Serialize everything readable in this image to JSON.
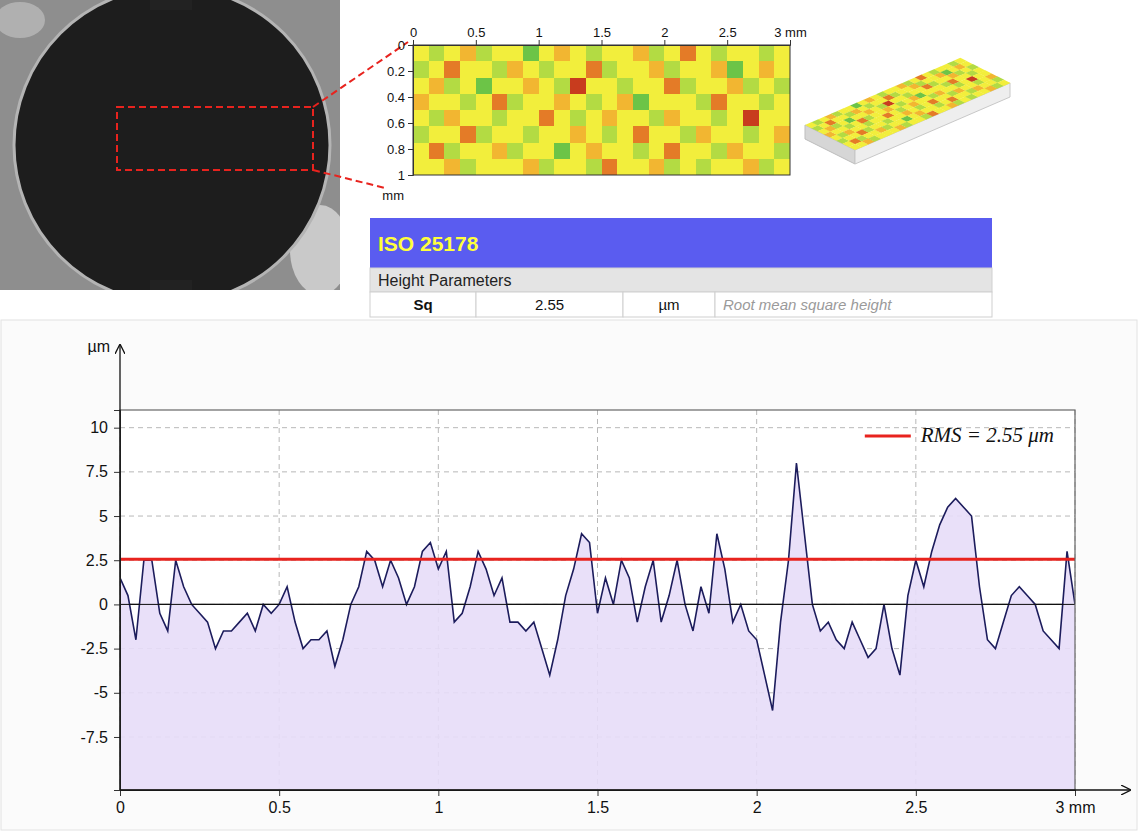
{
  "chart_data": [
    {
      "type": "heatmap",
      "xlim": [
        0,
        3
      ],
      "ylim": [
        0,
        1
      ],
      "xticks": [
        0,
        0.5,
        1,
        1.5,
        2,
        2.5,
        {
          "value": 3,
          "label": "3 mm"
        }
      ],
      "yticks": [
        0,
        0.2,
        0.4,
        0.6,
        0.8,
        1
      ],
      "ylabel": "mm",
      "zlim": [
        -3,
        3
      ],
      "z": [
        [
          0,
          -1,
          0,
          1,
          -1,
          0,
          0,
          -2,
          0,
          1,
          0,
          -1,
          0,
          0,
          1,
          -1,
          0,
          2,
          0,
          -1,
          0,
          0,
          -1,
          0
        ],
        [
          -1,
          0,
          2,
          0,
          0,
          -1,
          1,
          0,
          -1,
          0,
          0,
          2,
          -1,
          0,
          0,
          1,
          -1,
          0,
          0,
          1,
          -2,
          0,
          1,
          0
        ],
        [
          0,
          1,
          -1,
          0,
          -2,
          0,
          0,
          1,
          0,
          -1,
          3,
          0,
          0,
          -1,
          0,
          0,
          2,
          -1,
          0,
          0,
          1,
          -1,
          0,
          -1
        ],
        [
          1,
          0,
          0,
          -1,
          0,
          2,
          -1,
          0,
          0,
          1,
          0,
          -1,
          0,
          1,
          -2,
          0,
          0,
          0,
          -1,
          2,
          0,
          0,
          -1,
          0
        ],
        [
          0,
          -1,
          1,
          0,
          0,
          -1,
          0,
          0,
          2,
          0,
          -1,
          0,
          1,
          0,
          0,
          -1,
          1,
          0,
          0,
          -1,
          0,
          3,
          0,
          0
        ],
        [
          -1,
          0,
          0,
          2,
          -1,
          0,
          0,
          -1,
          0,
          0,
          1,
          0,
          -1,
          0,
          2,
          0,
          0,
          -1,
          1,
          0,
          0,
          -1,
          0,
          1
        ],
        [
          0,
          2,
          -1,
          0,
          0,
          1,
          -1,
          0,
          0,
          -2,
          0,
          1,
          0,
          0,
          -1,
          0,
          2,
          0,
          0,
          -1,
          1,
          0,
          0,
          -1
        ],
        [
          0,
          0,
          1,
          -1,
          0,
          0,
          0,
          1,
          -1,
          0,
          0,
          -1,
          2,
          0,
          0,
          1,
          -1,
          0,
          -1,
          0,
          0,
          1,
          -1,
          0
        ]
      ]
    },
    {
      "type": "line",
      "ylabel": "µm",
      "xlim": [
        0,
        3
      ],
      "ylim": [
        -10.5,
        11
      ],
      "xticks": [
        0,
        0.5,
        1,
        1.5,
        2,
        2.5,
        {
          "value": 3,
          "label": "3 mm"
        }
      ],
      "yticks": [
        -7.5,
        -5,
        -2.5,
        0,
        2.5,
        5,
        7.5,
        10
      ],
      "grid": true,
      "legend": "upper right",
      "x": [
        0,
        0.025,
        0.05,
        0.075,
        0.1,
        0.125,
        0.15,
        0.175,
        0.2,
        0.225,
        0.25,
        0.275,
        0.3,
        0.325,
        0.35,
        0.375,
        0.4,
        0.425,
        0.45,
        0.475,
        0.5,
        0.525,
        0.55,
        0.575,
        0.6,
        0.625,
        0.65,
        0.675,
        0.7,
        0.725,
        0.75,
        0.775,
        0.8,
        0.825,
        0.85,
        0.875,
        0.9,
        0.925,
        0.95,
        0.975,
        1,
        1.025,
        1.05,
        1.075,
        1.1,
        1.125,
        1.15,
        1.175,
        1.2,
        1.225,
        1.25,
        1.275,
        1.3,
        1.325,
        1.35,
        1.375,
        1.4,
        1.425,
        1.45,
        1.475,
        1.5,
        1.525,
        1.55,
        1.575,
        1.6,
        1.625,
        1.65,
        1.675,
        1.7,
        1.725,
        1.75,
        1.775,
        1.8,
        1.825,
        1.85,
        1.875,
        1.9,
        1.925,
        1.95,
        1.975,
        2,
        2.025,
        2.05,
        2.075,
        2.1,
        2.125,
        2.15,
        2.175,
        2.2,
        2.225,
        2.25,
        2.275,
        2.3,
        2.325,
        2.35,
        2.375,
        2.4,
        2.425,
        2.45,
        2.475,
        2.5,
        2.525,
        2.55,
        2.575,
        2.6,
        2.625,
        2.65,
        2.675,
        2.7,
        2.725,
        2.75,
        2.775,
        2.8,
        2.825,
        2.85,
        2.875,
        2.9,
        2.925,
        2.95,
        2.975,
        3
      ],
      "series": [
        {
          "type": "area",
          "color": "#1c1c5c",
          "values": [
            1.5,
            0.5,
            -2,
            2.5,
            2.5,
            -0.5,
            -1.5,
            2.5,
            1,
            0,
            -0.5,
            -1,
            -2.5,
            -1.5,
            -1.5,
            -1,
            -0.5,
            -1.5,
            0,
            -0.5,
            0,
            1,
            -1,
            -2.5,
            -2,
            -2,
            -1.5,
            -3.5,
            -2,
            0,
            1,
            3,
            2.5,
            1,
            2.5,
            1.5,
            0,
            1,
            3,
            3.5,
            2,
            3,
            -1,
            -0.5,
            1,
            3,
            2,
            0.5,
            1.5,
            -1,
            -1,
            -1.5,
            -1,
            -2.5,
            -4,
            -2,
            0.5,
            2,
            4,
            3.5,
            -0.5,
            1.5,
            0,
            2.5,
            1.5,
            -1,
            1,
            2.5,
            -1,
            0.5,
            2.5,
            0,
            -1.5,
            1,
            -0.5,
            4,
            2,
            -1,
            0,
            -1.5,
            -2,
            -4,
            -6,
            -1,
            2.5,
            8,
            4,
            0,
            -1.5,
            -1,
            -2,
            -2.5,
            -1,
            -2,
            -3,
            -2.5,
            0,
            -2.5,
            -4,
            0.5,
            2.5,
            1,
            3,
            4.5,
            5.5,
            6,
            5.5,
            5,
            1,
            -2,
            -2.5,
            -1,
            0.5,
            1,
            0.5,
            0,
            -1.5,
            -2,
            -2.5,
            3,
            0
          ]
        },
        {
          "type": "line",
          "name": "RMS = 2.55 μm",
          "color": "#e8231e",
          "x": [
            0,
            3
          ],
          "values": [
            2.55,
            2.55
          ]
        }
      ]
    }
  ],
  "table": {
    "title": "ISO 25178",
    "section": "Height Parameters",
    "rows": [
      [
        "Sq",
        "2.55",
        "µm",
        "Root mean square height"
      ]
    ]
  }
}
